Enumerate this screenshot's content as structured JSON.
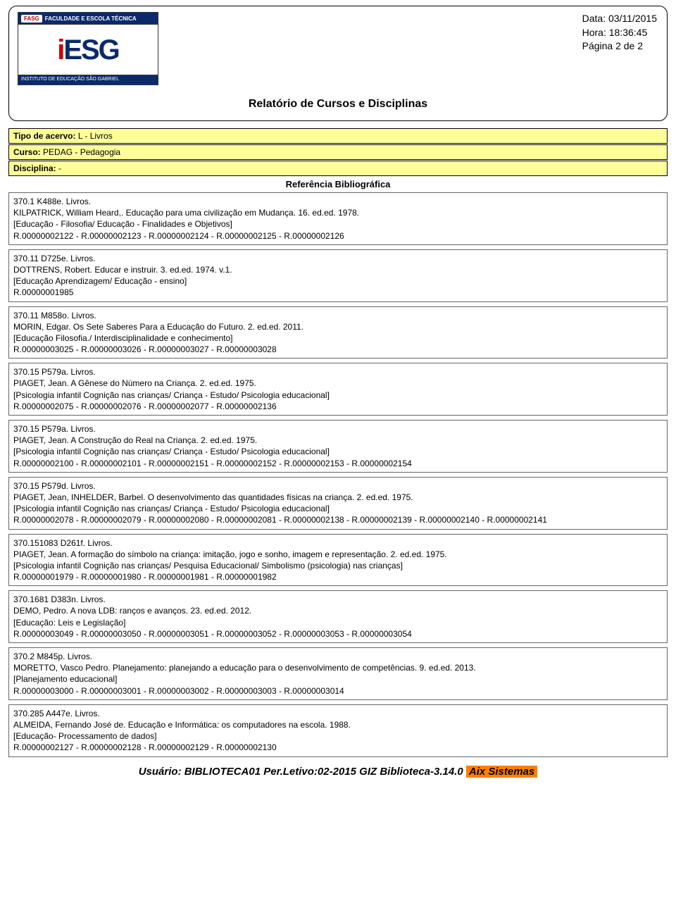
{
  "header": {
    "logo_top_badge": "FASG",
    "logo_top_text": "FACULDADE E ESCOLA TÉCNICA",
    "logo_main": "iESG",
    "logo_sub": "INSTITUTO DE EDUCAÇÃO SÃO GABRIEL",
    "meta_date": "Data: 03/11/2015",
    "meta_time": "Hora: 18:36:45",
    "meta_page": "Página 2 de 2",
    "report_title": "Relatório de Cursos e Disciplinas"
  },
  "filters": {
    "tipo_label": "Tipo de acervo:",
    "tipo_value": "L   - Livros",
    "curso_label": "Curso:",
    "curso_value": "PEDAG - Pedagogia",
    "disciplina_label": "Disciplina:",
    "disciplina_value": "                              -"
  },
  "ref_header": "Referência Bibliográfica",
  "entries": [
    "370.1 K488e.  Livros.\nKILPATRICK, William Heard,.  Educação para uma civilização em Mudança.  16.  ed.ed.  1978.\n[Educação - Filosofia/ Educação - Finalidades e Objetivos]\nR.00000002122 - R.00000002123 - R.00000002124 - R.00000002125 - R.00000002126",
    "370.11 D725e.  Livros.\nDOTTRENS, Robert.  Educar e instruir.  3.  ed.ed.  1974.  v.1.\n[Educação Aprendizagem/ Educação - ensino]\nR.00000001985",
    "370.11 M858o.  Livros.\nMORIN, Edgar.  Os Sete Saberes Para a Educação do Futuro.  2.  ed.ed.  2011.\n[Educação Filosofia./ Interdisciplinalidade e conhecimento]\nR.00000003025 - R.00000003026 - R.00000003027 - R.00000003028",
    "370.15 P579a.  Livros.\nPIAGET, Jean.  A Gênese do Número na Criança.  2.  ed.ed.  1975.\n[Psicologia infantil Cognição nas crianças/ Criança - Estudo/ Psicologia educacional]\nR.00000002075 - R.00000002076 - R.00000002077 - R.00000002136",
    "370.15 P579a.  Livros.\nPIAGET, Jean.  A Construção do Real na Criança.  2.  ed.ed.  1975.\n[Psicologia infantil Cognição nas crianças/ Criança - Estudo/ Psicologia educacional]\nR.00000002100 - R.00000002101 - R.00000002151 - R.00000002152 - R.00000002153 - R.00000002154",
    "370.15 P579d.  Livros.\nPIAGET, Jean, INHELDER, Barbel.  O desenvolvimento das quantidades físicas na criança.  2.  ed.ed.  1975.\n[Psicologia infantil Cognição nas crianças/ Criança - Estudo/ Psicologia educacional]\nR.00000002078 - R.00000002079 - R.00000002080 - R.00000002081 - R.00000002138 - R.00000002139 - R.00000002140 - R.00000002141",
    "370.151083 D261f.  Livros.\nPIAGET, Jean.  A formação do símbolo na criança: imitação, jogo e sonho, imagem e representação.  2.  ed.ed.  1975.\n[Psicologia infantil Cognição nas crianças/ Pesquisa Educacional/ Simbolismo (psicologia) nas crianças]\nR.00000001979 - R.00000001980 - R.00000001981 - R.00000001982",
    "370.1681 D383n.  Livros.\nDEMO, Pedro.  A nova LDB: ranços e avanços.  23.  ed.ed.  2012.\n[Educação: Leis e Legislação]\nR.00000003049 - R.00000003050 - R.00000003051 - R.00000003052 - R.00000003053 - R.00000003054",
    "370.2 M845p.  Livros.\nMORETTO, Vasco Pedro.  Planejamento: planejando a educação para o desenvolvimento de competências.  9.  ed.ed.  2013.\n[Planejamento educacional]\nR.00000003000 - R.00000003001 - R.00000003002 - R.00000003003 - R.00000003014",
    "370.285 A447e.  Livros.\nALMEIDA, Fernando José de.  Educação e Informática: os computadores na escola.  1988.\n[Educação- Processamento de dados]\nR.00000002127 - R.00000002128 - R.00000002129 - R.00000002130"
  ],
  "footer": {
    "user_prefix": "Usuário: BIBLIOTECA01 Per.Letivo:02-2015 GIZ Biblioteca-3.14.0",
    "aix": "Aix Sistemas"
  },
  "colors": {
    "yellow_bg": "#ffff99",
    "blue_logo": "#0a2a6b",
    "red_logo": "#c00000",
    "orange_footer": "#ff8000",
    "border": "#000000"
  }
}
